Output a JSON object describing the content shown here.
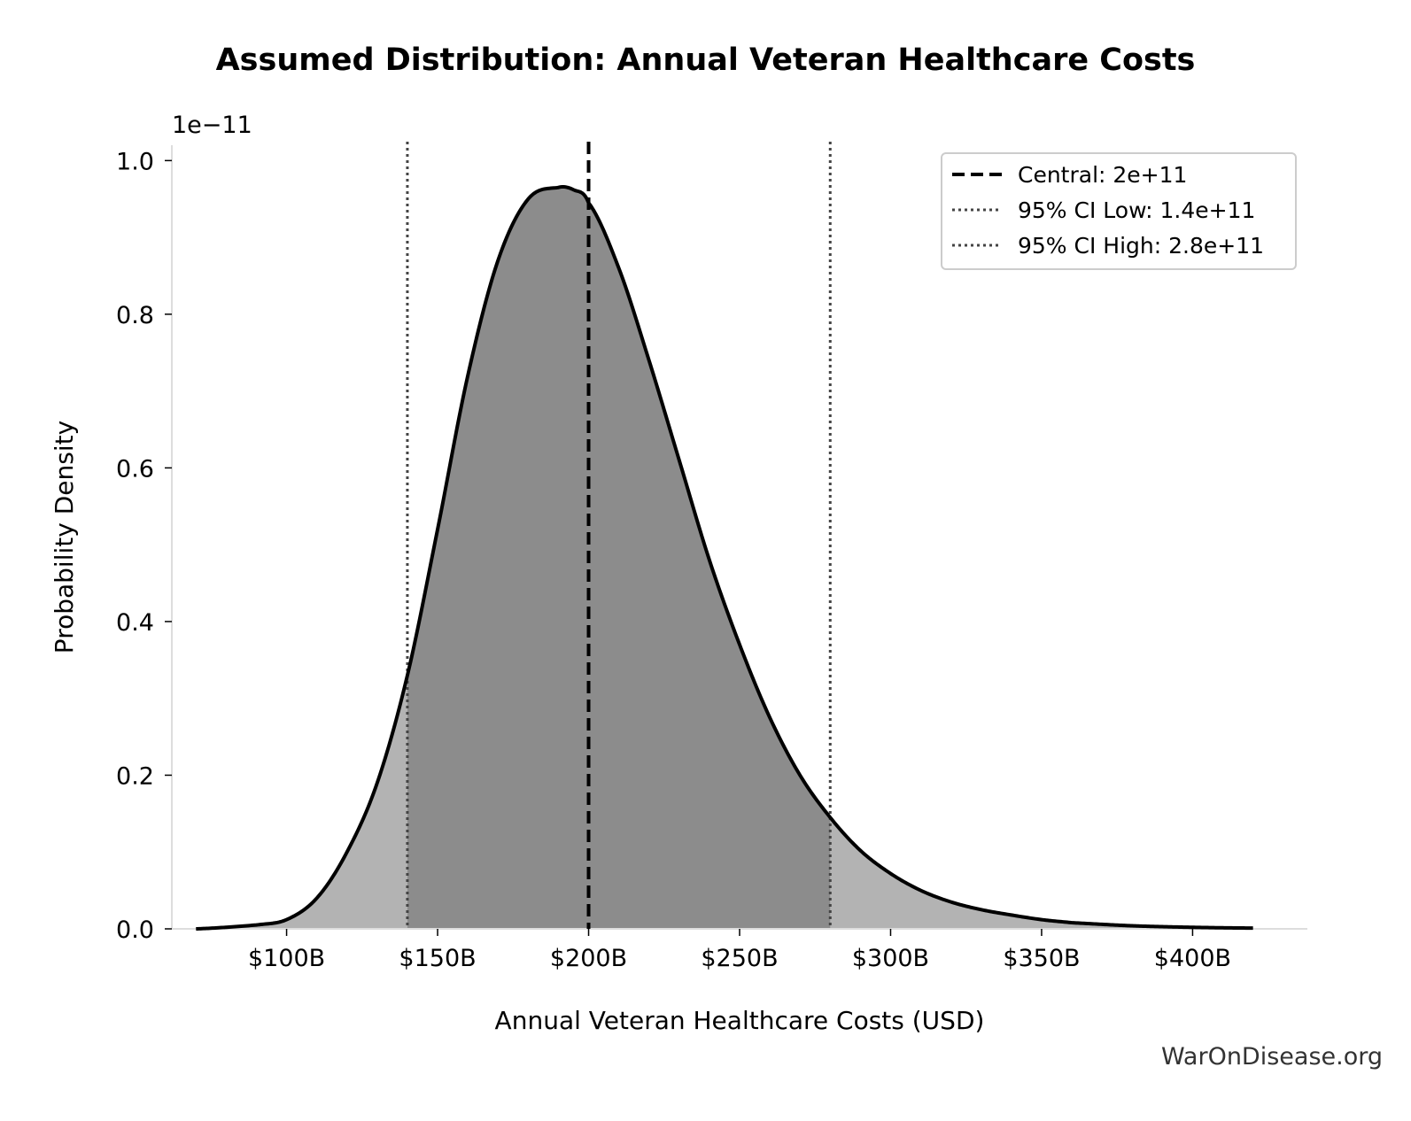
{
  "chart_data": {
    "type": "area",
    "title": "Assumed Distribution: Annual Veteran Healthcare Costs",
    "xlabel": "Annual Veteran Healthcare Costs (USD)",
    "ylabel": "Probability Density",
    "y_offset_label": "1e−11",
    "xlim": [
      62,
      438
    ],
    "ylim": [
      0,
      1.02
    ],
    "x_ticks": [
      {
        "value": 100,
        "label": "$100B"
      },
      {
        "value": 150,
        "label": "$150B"
      },
      {
        "value": 200,
        "label": "$200B"
      },
      {
        "value": 250,
        "label": "$250B"
      },
      {
        "value": 300,
        "label": "$300B"
      },
      {
        "value": 350,
        "label": "$350B"
      },
      {
        "value": 400,
        "label": "$400B"
      }
    ],
    "y_ticks": [
      {
        "value": 0.0,
        "label": "0.0"
      },
      {
        "value": 0.2,
        "label": "0.2"
      },
      {
        "value": 0.4,
        "label": "0.4"
      },
      {
        "value": 0.6,
        "label": "0.6"
      },
      {
        "value": 0.8,
        "label": "0.8"
      },
      {
        "value": 1.0,
        "label": "1.0"
      }
    ],
    "series": [
      {
        "name": "density",
        "x": [
          70,
          90,
          100,
          110,
          120,
          130,
          140,
          150,
          160,
          170,
          180,
          190,
          195,
          200,
          210,
          220,
          230,
          240,
          250,
          260,
          270,
          280,
          290,
          300,
          310,
          320,
          330,
          340,
          350,
          360,
          380,
          400,
          420
        ],
        "y": [
          0.0,
          0.005,
          0.012,
          0.04,
          0.1,
          0.19,
          0.33,
          0.52,
          0.72,
          0.87,
          0.95,
          0.965,
          0.962,
          0.945,
          0.86,
          0.74,
          0.61,
          0.48,
          0.37,
          0.275,
          0.2,
          0.145,
          0.102,
          0.072,
          0.05,
          0.035,
          0.025,
          0.018,
          0.012,
          0.008,
          0.004,
          0.002,
          0.001
        ]
      }
    ],
    "ci_shading": {
      "low": 140,
      "high": 280,
      "inner_color": "#8c8c8c",
      "outer_color": "#b3b3b3"
    },
    "reference_lines": [
      {
        "label": "Central: 2e+11",
        "x": 200,
        "style": "dashed",
        "color": "#000000"
      },
      {
        "label": "95% CI Low: 1.4e+11",
        "x": 140,
        "style": "dotted",
        "color": "#444444"
      },
      {
        "label": "95% CI High: 2.8e+11",
        "x": 280,
        "style": "dotted",
        "color": "#444444"
      }
    ],
    "legend_position": "top-right",
    "grid": false
  },
  "watermark": "WarOnDisease.org"
}
